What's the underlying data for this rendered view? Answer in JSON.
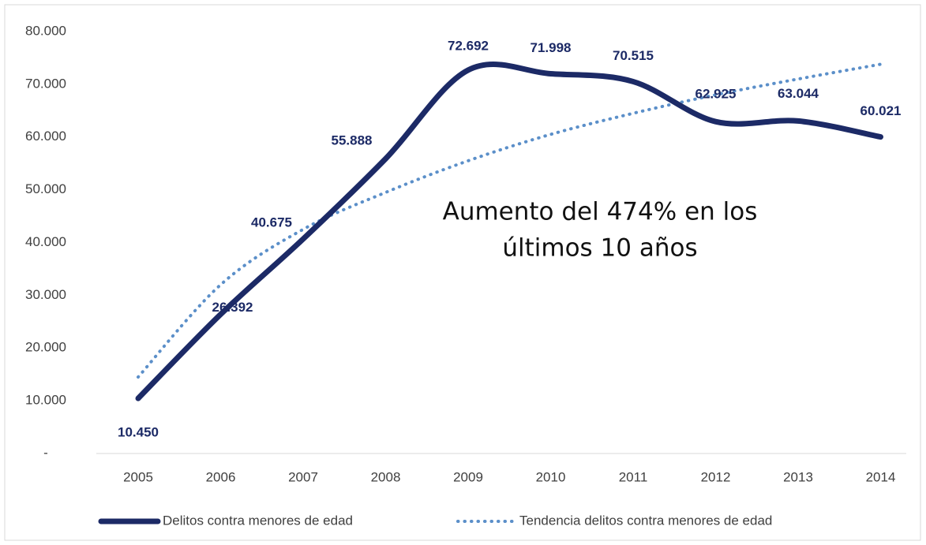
{
  "chart_data": {
    "type": "line",
    "categories": [
      "2005",
      "2006",
      "2007",
      "2008",
      "2009",
      "2010",
      "2011",
      "2012",
      "2013",
      "2014"
    ],
    "series": [
      {
        "name": "Delitos contra menores de edad",
        "color": "#1c2a66",
        "values": [
          10450,
          26392,
          40675,
          55888,
          72692,
          71998,
          70515,
          62925,
          63044,
          60021
        ],
        "value_labels": [
          "10.450",
          "26.392",
          "40.675",
          "55.888",
          "72.692",
          "71.998",
          "70.515",
          "62.925",
          "63.044",
          "60.021"
        ]
      },
      {
        "name": "Tendencia delitos contra menores de edad",
        "color": "#5b8fc9",
        "dotted": true,
        "values": [
          14500,
          32000,
          42500,
          49500,
          55500,
          60500,
          64500,
          68000,
          71000,
          73800
        ]
      }
    ],
    "ylim": [
      0,
      80000
    ],
    "yticks": [
      {
        "value": 0,
        "label": "-"
      },
      {
        "value": 10000,
        "label": "10.000"
      },
      {
        "value": 20000,
        "label": "20.000"
      },
      {
        "value": 30000,
        "label": "30.000"
      },
      {
        "value": 40000,
        "label": "40.000"
      },
      {
        "value": 50000,
        "label": "50.000"
      },
      {
        "value": 60000,
        "label": "60.000"
      },
      {
        "value": 70000,
        "label": "70.000"
      },
      {
        "value": 80000,
        "label": "80.000"
      }
    ],
    "annotation": [
      "Aumento del 474% en los",
      "últimos 10 años"
    ],
    "legend": "bottom"
  }
}
